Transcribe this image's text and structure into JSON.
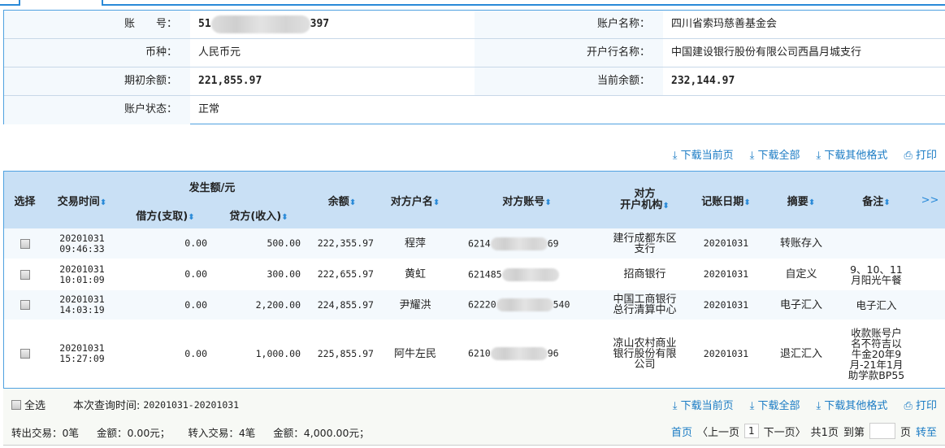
{
  "account": {
    "number_label": "账　　号：",
    "number_prefix": "51",
    "number_suffix": "397",
    "name_label": "账户名称：",
    "name": "四川省索玛慈善基金会",
    "currency_label": "币种：",
    "currency": "人民币元",
    "bank_label": "开户行名称：",
    "bank": "中国建设银行股份有限公司西昌月城支行",
    "opening_label": "期初余额：",
    "opening": "221,855.97",
    "current_label": "当前余额：",
    "current": "232,144.97",
    "status_label": "账户状态：",
    "status": "正常"
  },
  "toolbar": {
    "download_page": "下载当前页",
    "download_all": "下载全部",
    "download_other": "下载其他格式",
    "print": "打印"
  },
  "table": {
    "headers": {
      "select": "选择",
      "time": "交易时间",
      "amount_group": "发生额/元",
      "debit": "借方(支取)",
      "credit": "贷方(收入)",
      "balance": "余额",
      "name": "对方户名",
      "account": "对方账号",
      "inst1": "对方",
      "inst2": "开户机构",
      "date": "记账日期",
      "summary": "摘要",
      "remark": "备注",
      "more": ">>"
    },
    "rows": [
      {
        "date1": "20201031",
        "time": "09:46:33",
        "debit": "0.00",
        "credit": "500.00",
        "balance": "222,355.97",
        "name": "程萍",
        "acct_prefix": "6214",
        "acct_suffix": "69",
        "inst": "建行成都东区支行",
        "bookdate": "20201031",
        "summary": "转账存入",
        "remark": ""
      },
      {
        "date1": "20201031",
        "time": "10:01:09",
        "debit": "0.00",
        "credit": "300.00",
        "balance": "222,655.97",
        "name": "黄虹",
        "acct_prefix": "621485",
        "acct_suffix": "",
        "inst": "招商银行",
        "bookdate": "20201031",
        "summary": "自定义",
        "remark": "9、10、11月阳光午餐"
      },
      {
        "date1": "20201031",
        "time": "14:03:19",
        "debit": "0.00",
        "credit": "2,200.00",
        "balance": "224,855.97",
        "name": "尹耀洪",
        "acct_prefix": "62220",
        "acct_suffix": "540",
        "inst": "中国工商银行总行清算中心",
        "bookdate": "20201031",
        "summary": "电子汇入",
        "remark": "电子汇入"
      },
      {
        "date1": "20201031",
        "time": "15:27:09",
        "debit": "0.00",
        "credit": "1,000.00",
        "balance": "225,855.97",
        "name": "阿牛左民",
        "acct_prefix": "6210",
        "acct_suffix": "96",
        "inst": "凉山农村商业银行股份有限公司",
        "bookdate": "20201031",
        "summary": "退汇汇入",
        "remark": "收款账号户名不符吉以牛金20年9月-21年1月助学款BP55"
      }
    ]
  },
  "footer": {
    "select_all": "全选",
    "query_label": "本次查询时间:",
    "query_range": "20201031-20201031",
    "out_tx": "转出交易：0笔",
    "out_amt": "金额：0.00元；",
    "in_tx": "转入交易：4笔",
    "in_amt": "金额：4,000.00元；",
    "first": "首页",
    "prev": "〈上一页",
    "page": "1",
    "next": "下一页〉",
    "total": "共1页",
    "goto_label": "到第",
    "page_unit": "页",
    "goto": "转至"
  },
  "colors": {
    "accent": "#2a8ad8",
    "header_bg": "#c9e0f5",
    "link": "#1a7bc4"
  }
}
